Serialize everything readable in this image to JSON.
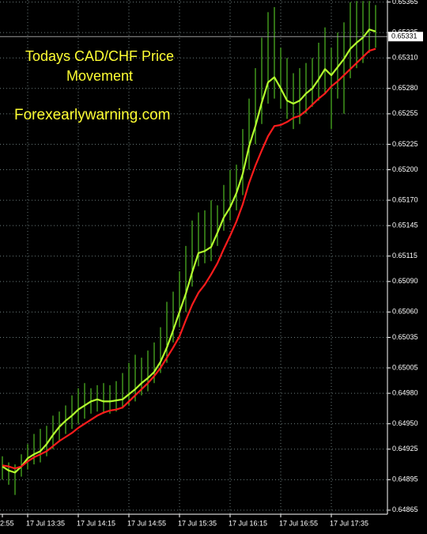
{
  "chart_data": {
    "type": "bar-chart",
    "title_lines": [
      "Todays CAD/CHF Price",
      "Movement"
    ],
    "subtitle": "Forexearlywarning.com",
    "categories": [
      "2:55",
      null,
      null,
      null,
      "17 Jul 13:35",
      null,
      null,
      null,
      null,
      null,
      null,
      null,
      "17 Jul 14:15",
      null,
      null,
      null,
      null,
      null,
      null,
      null,
      "17 Jul 14:55",
      null,
      null,
      null,
      null,
      null,
      null,
      null,
      "17 Jul 15:35",
      null,
      null,
      null,
      null,
      null,
      null,
      null,
      "17 Jul 16:15",
      null,
      null,
      null,
      null,
      null,
      null,
      null,
      "17 Jul 16:55",
      null,
      null,
      null,
      null,
      null,
      null,
      null,
      "17 Jul 17:35",
      null,
      null,
      null,
      null,
      null,
      null,
      null
    ],
    "bars": {
      "color": "#5fe02a",
      "high": [
        0.64918,
        0.64912,
        0.6491,
        0.6492,
        0.6493,
        0.6494,
        0.64945,
        0.64948,
        0.64958,
        0.64962,
        0.64968,
        0.64978,
        0.64985,
        0.6499,
        0.64985,
        0.64988,
        0.6499,
        0.64988,
        0.64992,
        0.65,
        0.6501,
        0.65018,
        0.65015,
        0.65022,
        0.6503,
        0.65045,
        0.6507,
        0.6508,
        0.651,
        0.65125,
        0.6515,
        0.65158,
        0.6516,
        0.6517,
        0.65165,
        0.65185,
        0.652,
        0.65205,
        0.6524,
        0.6527,
        0.653,
        0.6533,
        0.65355,
        0.6536,
        0.6532,
        0.6531,
        0.65295,
        0.653,
        0.65305,
        0.6531,
        0.65325,
        0.6534,
        0.6532,
        0.65335,
        0.65345,
        0.65365,
        0.65366,
        0.65366,
        0.65366,
        0.65362
      ],
      "low": [
        0.64895,
        0.6489,
        0.6488,
        0.64898,
        0.64905,
        0.6491,
        0.64912,
        0.64918,
        0.64925,
        0.64932,
        0.6494,
        0.64945,
        0.6495,
        0.64955,
        0.6496,
        0.64962,
        0.6496,
        0.6496,
        0.64962,
        0.64965,
        0.64968,
        0.64972,
        0.64978,
        0.64982,
        0.6499,
        0.65,
        0.6501,
        0.6503,
        0.65045,
        0.6506,
        0.65085,
        0.65105,
        0.65108,
        0.6511,
        0.65125,
        0.6514,
        0.6515,
        0.6516,
        0.65175,
        0.652,
        0.65225,
        0.65245,
        0.65265,
        0.6527,
        0.6526,
        0.6525,
        0.6524,
        0.65245,
        0.65255,
        0.65262,
        0.65268,
        0.65275,
        0.6524,
        0.6527,
        0.65255,
        0.6529,
        0.653,
        0.65305,
        0.65315,
        0.6532
      ]
    },
    "series": [
      {
        "color": "#b4ff2e",
        "values": [
          0.64908,
          0.64904,
          0.64902,
          0.64908,
          0.64916,
          0.6492,
          0.64923,
          0.6493,
          0.64939,
          0.64947,
          0.64953,
          0.64958,
          0.64964,
          0.64968,
          0.64972,
          0.64974,
          0.64972,
          0.64972,
          0.64973,
          0.64974,
          0.64979,
          0.64984,
          0.6499,
          0.64995,
          0.65001,
          0.65011,
          0.65025,
          0.65042,
          0.6506,
          0.65078,
          0.65099,
          0.65118,
          0.6512,
          0.65124,
          0.65138,
          0.65153,
          0.65163,
          0.65177,
          0.65196,
          0.65223,
          0.65243,
          0.65266,
          0.65286,
          0.65291,
          0.6528,
          0.65268,
          0.65265,
          0.65268,
          0.65275,
          0.6528,
          0.65289,
          0.65299,
          0.65293,
          0.65301,
          0.65309,
          0.65319,
          0.65325,
          0.6533,
          0.65338,
          0.65336
        ]
      },
      {
        "color": "#ff1c1c",
        "values": [
          0.64909,
          0.64908,
          0.64906,
          0.64908,
          0.64913,
          0.64917,
          0.6492,
          0.64923,
          0.64928,
          0.64933,
          0.64937,
          0.64941,
          0.64946,
          0.6495,
          0.64954,
          0.64958,
          0.64961,
          0.64963,
          0.64964,
          0.64966,
          0.64972,
          0.64978,
          0.64984,
          0.6499,
          0.64997,
          0.65005,
          0.65015,
          0.65025,
          0.65036,
          0.65052,
          0.65067,
          0.65079,
          0.65087,
          0.65097,
          0.65108,
          0.65122,
          0.65135,
          0.65149,
          0.65166,
          0.65187,
          0.65204,
          0.65219,
          0.65233,
          0.65243,
          0.65244,
          0.65247,
          0.65251,
          0.65253,
          0.65258,
          0.65264,
          0.6527,
          0.65275,
          0.65282,
          0.65287,
          0.65293,
          0.65299,
          0.65305,
          0.65311,
          0.65317,
          0.65319
        ]
      }
    ],
    "last_price": 0.65331,
    "ylim": [
      0.64861,
      0.65367
    ],
    "yticks": [
      0.65365,
      0.65335,
      {
        "value": 0.6531,
        "label": "0.65310"
      },
      {
        "value": 0.6528,
        "label": "0.65280"
      },
      0.65255,
      0.65225,
      {
        "value": 0.652,
        "label": "0.65200"
      },
      {
        "value": 0.6517,
        "label": "0.65170"
      },
      0.65145,
      0.65115,
      {
        "value": 0.6509,
        "label": "0.65090"
      },
      {
        "value": 0.6506,
        "label": "0.65060"
      },
      0.65035,
      0.65005,
      {
        "value": 0.6498,
        "label": "0.64980"
      },
      {
        "value": 0.6495,
        "label": "0.64950"
      },
      0.64925,
      0.64895,
      0.64865
    ],
    "grid": true,
    "title_color": "#ffff33"
  }
}
